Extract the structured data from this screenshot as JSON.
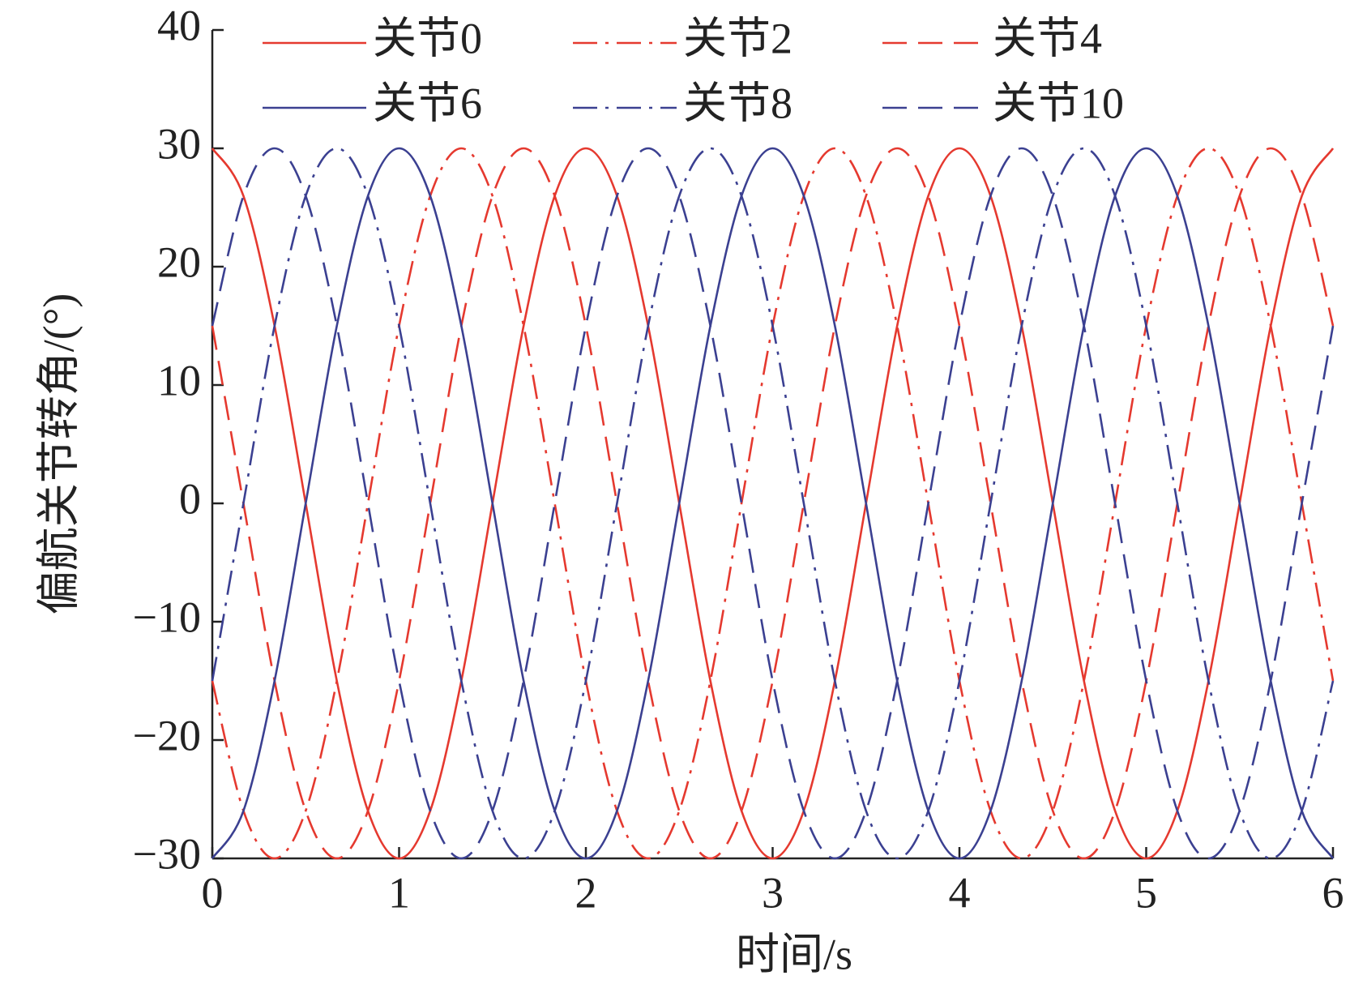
{
  "chart_data": {
    "type": "line",
    "x_label": "时间/s",
    "y_label": "偏航关节转角/(°)",
    "x": [
      0,
      0.1667,
      0.3333,
      0.5,
      0.6667,
      0.8333,
      1,
      1.1667,
      1.3333,
      1.5,
      1.6667,
      1.8333,
      2,
      2.1667,
      2.3333,
      2.5,
      2.6667,
      2.8333,
      3,
      3.1667,
      3.3333,
      3.5,
      3.6667,
      3.8333,
      4,
      4.1667,
      4.3333,
      4.5,
      4.6667,
      4.8333,
      5,
      5.1667,
      5.3333,
      5.5,
      5.6667,
      5.8333,
      6
    ],
    "series": [
      {
        "name": "关节0",
        "color": "#e5392f",
        "style": "solid",
        "values": [
          30,
          25.98,
          15,
          0,
          -15,
          -25.98,
          -30,
          -25.98,
          -15,
          0,
          15,
          25.98,
          30,
          25.98,
          15,
          0,
          -15,
          -25.98,
          -30,
          -25.98,
          -15,
          0,
          15,
          25.98,
          30,
          25.98,
          15,
          0,
          -15,
          -25.98,
          -30,
          -25.98,
          -15,
          0,
          15,
          25.98,
          30
        ]
      },
      {
        "name": "关节2",
        "color": "#e5392f",
        "style": "dashdot",
        "values": [
          -15,
          -25.98,
          -30,
          -25.98,
          -15,
          0,
          15,
          25.98,
          30,
          25.98,
          15,
          0,
          -15,
          -25.98,
          -30,
          -25.98,
          -15,
          0,
          15,
          25.98,
          30,
          25.98,
          15,
          0,
          -15,
          -25.98,
          -30,
          -25.98,
          -15,
          0,
          15,
          25.98,
          30,
          25.98,
          15,
          0,
          -15
        ]
      },
      {
        "name": "关节4",
        "color": "#e5392f",
        "style": "dashed",
        "values": [
          15,
          0,
          -15,
          -25.98,
          -30,
          -25.98,
          -15,
          0,
          15,
          25.98,
          30,
          25.98,
          15,
          0,
          -15,
          -25.98,
          -30,
          -25.98,
          -15,
          0,
          15,
          25.98,
          30,
          25.98,
          15,
          0,
          -15,
          -25.98,
          -30,
          -25.98,
          -15,
          0,
          15,
          25.98,
          30,
          25.98,
          15
        ]
      },
      {
        "name": "关节6",
        "color": "#3b4091",
        "style": "solid",
        "values": [
          -30,
          -25.98,
          -15,
          0,
          15,
          25.98,
          30,
          25.98,
          15,
          0,
          -15,
          -25.98,
          -30,
          -25.98,
          -15,
          0,
          15,
          25.98,
          30,
          25.98,
          15,
          0,
          -15,
          -25.98,
          -30,
          -25.98,
          -15,
          0,
          15,
          25.98,
          30,
          25.98,
          15,
          0,
          -15,
          -25.98,
          -30
        ]
      },
      {
        "name": "关节8",
        "color": "#3b4091",
        "style": "dashdot",
        "values": [
          -15,
          0,
          15,
          25.98,
          30,
          25.98,
          15,
          0,
          -15,
          -25.98,
          -30,
          -25.98,
          -15,
          0,
          15,
          25.98,
          30,
          25.98,
          15,
          0,
          -15,
          -25.98,
          -30,
          -25.98,
          -15,
          0,
          15,
          25.98,
          30,
          25.98,
          15,
          0,
          -15,
          -25.98,
          -30,
          -25.98,
          -15
        ]
      },
      {
        "name": "关节10",
        "color": "#3b4091",
        "style": "dashed",
        "values": [
          15,
          25.98,
          30,
          25.98,
          15,
          0,
          -15,
          -25.98,
          -30,
          -25.98,
          -15,
          0,
          15,
          25.98,
          30,
          25.98,
          15,
          0,
          -15,
          -25.98,
          -30,
          -25.98,
          -15,
          0,
          15,
          25.98,
          30,
          25.98,
          15,
          0,
          -15,
          -25.98,
          -30,
          -25.98,
          -15,
          0,
          15
        ]
      }
    ],
    "xlim": [
      0,
      6
    ],
    "xticks": [
      0,
      1,
      2,
      3,
      4,
      5,
      6
    ],
    "ylim": [
      -30,
      40
    ],
    "yticks": [
      {
        "value": -30,
        "label": "−30"
      },
      {
        "value": -20,
        "label": "−20"
      },
      {
        "value": -10,
        "label": "−10"
      },
      0,
      10,
      20,
      30,
      40
    ],
    "grid": false,
    "legend": "top"
  }
}
